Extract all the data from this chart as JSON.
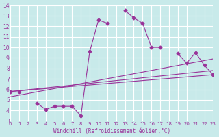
{
  "background_color": "#c8eaea",
  "grid_color": "#ffffff",
  "line_color": "#993399",
  "xlim": [
    0,
    23
  ],
  "ylim": [
    3,
    14
  ],
  "xticks": [
    0,
    1,
    2,
    3,
    4,
    5,
    6,
    7,
    8,
    9,
    10,
    11,
    12,
    13,
    14,
    15,
    16,
    17,
    18,
    19,
    20,
    21,
    22,
    23
  ],
  "yticks": [
    3,
    4,
    5,
    6,
    7,
    8,
    9,
    10,
    11,
    12,
    13,
    14
  ],
  "xlabel": "Windchill (Refroidissement éolien,°C)",
  "series1": {
    "x": [
      0,
      1,
      2,
      3,
      4,
      5,
      6,
      7,
      8,
      9,
      10,
      11,
      12,
      13,
      14,
      15,
      16,
      17,
      18,
      19,
      20,
      21,
      22,
      23
    ],
    "y": [
      5.8,
      5.8,
      null,
      4.7,
      4.1,
      4.4,
      4.4,
      4.4,
      3.5,
      9.6,
      12.6,
      12.3,
      null,
      13.5,
      12.8,
      12.3,
      10.0,
      10.0,
      null,
      9.4,
      8.5,
      9.5,
      8.3,
      7.4
    ]
  },
  "line2": {
    "x": [
      0,
      23
    ],
    "y": [
      5.8,
      7.4
    ]
  },
  "line3": {
    "x": [
      0,
      23
    ],
    "y": [
      5.8,
      7.8
    ]
  },
  "line4": {
    "x": [
      0,
      23
    ],
    "y": [
      5.3,
      8.9
    ]
  }
}
